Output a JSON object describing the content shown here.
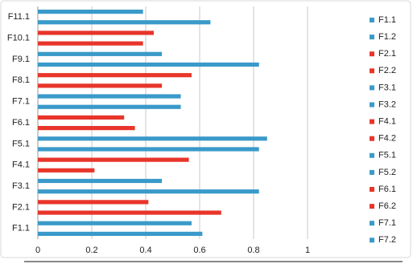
{
  "chart_data": {
    "type": "bar",
    "orientation": "horizontal",
    "categories": [
      "F1.1",
      null,
      "F2.1",
      null,
      "F3.1",
      null,
      "F4.1",
      null,
      "F5.1",
      null,
      "F6.1",
      null,
      "F7.1",
      null,
      "F8.1",
      null,
      "F9.1",
      null,
      "F10.1",
      null,
      "F11.1",
      null
    ],
    "values": [
      0.61,
      0.57,
      0.68,
      0.41,
      0.82,
      0.46,
      0.21,
      0.56,
      0.82,
      0.85,
      0.36,
      0.32,
      0.53,
      0.53,
      0.46,
      0.57,
      0.82,
      0.46,
      0.39,
      0.43,
      0.64,
      0.39
    ],
    "colors": [
      "#3a9ac9",
      "#3a9ac9",
      "#e8352a",
      "#e8352a",
      "#3a9ac9",
      "#3a9ac9",
      "#e8352a",
      "#e8352a",
      "#3a9ac9",
      "#3a9ac9",
      "#e8352a",
      "#e8352a",
      "#3a9ac9",
      "#3a9ac9",
      "#e8352a",
      "#e8352a",
      "#3a9ac9",
      "#3a9ac9",
      "#e8352a",
      "#e8352a",
      "#3a9ac9",
      "#3a9ac9"
    ],
    "legend": [
      {
        "name": "F1.1",
        "color": "#3a9ac9"
      },
      {
        "name": "F1.2",
        "color": "#3a9ac9"
      },
      {
        "name": "F2.1",
        "color": "#e8352a"
      },
      {
        "name": "F2.2",
        "color": "#e8352a"
      },
      {
        "name": "F3.1",
        "color": "#3a9ac9"
      },
      {
        "name": "F3.2",
        "color": "#3a9ac9"
      },
      {
        "name": "F4.1",
        "color": "#e8352a"
      },
      {
        "name": "F4.2",
        "color": "#e8352a"
      },
      {
        "name": "F5.1",
        "color": "#3a9ac9"
      },
      {
        "name": "F5.2",
        "color": "#3a9ac9"
      },
      {
        "name": "F6.1",
        "color": "#e8352a"
      },
      {
        "name": "F6.2",
        "color": "#e8352a"
      },
      {
        "name": "F7.1",
        "color": "#3a9ac9"
      },
      {
        "name": "F7.2",
        "color": "#3a9ac9"
      }
    ],
    "xlim": [
      0,
      1
    ],
    "xticks": [
      0,
      0.2,
      0.4,
      0.6,
      0.8,
      1
    ],
    "grid": true,
    "legend_position": "right"
  }
}
